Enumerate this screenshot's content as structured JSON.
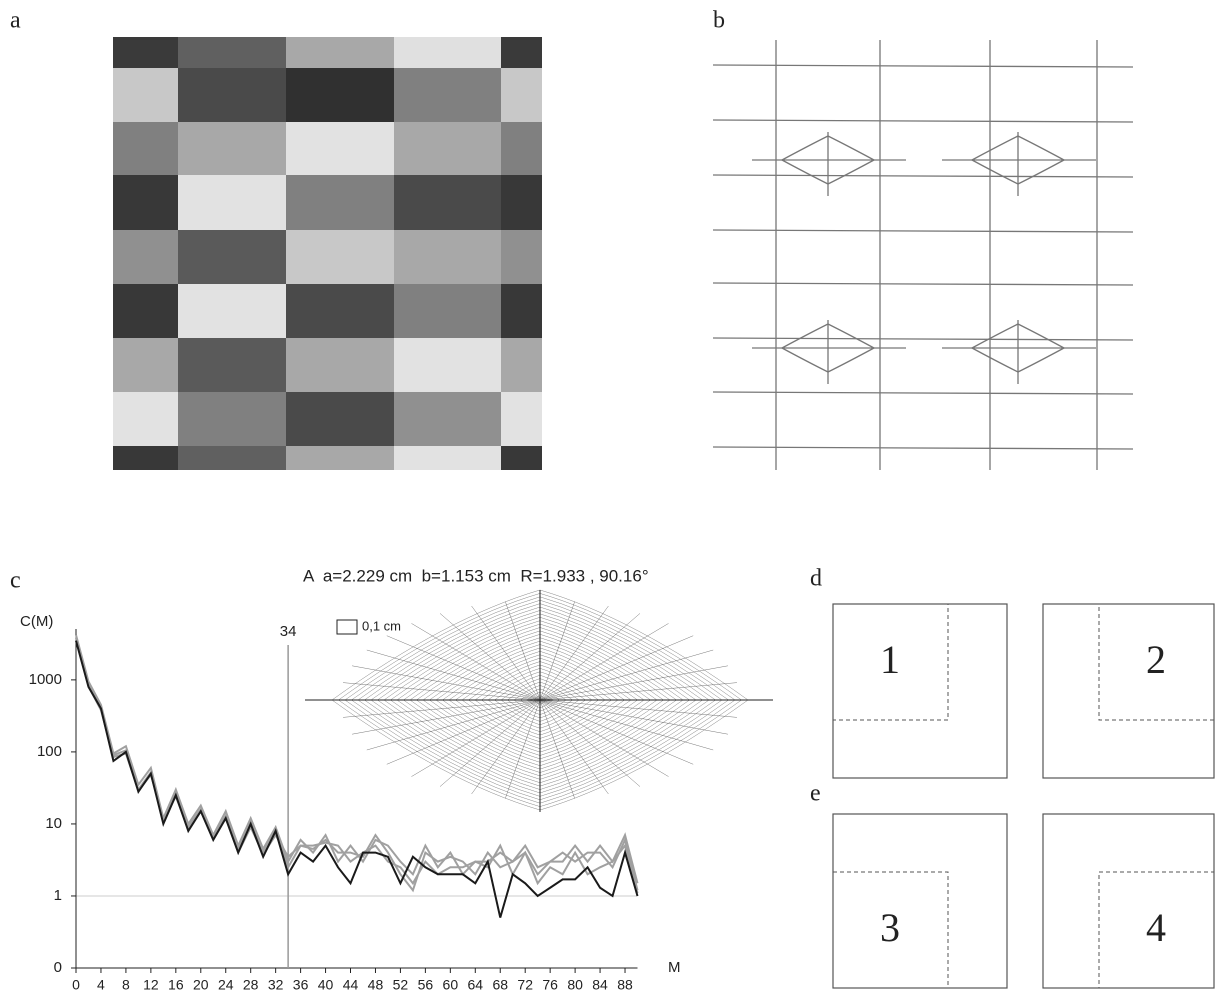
{
  "panel_labels": [
    "a",
    "b",
    "c",
    "d",
    "e"
  ],
  "boxes": [
    1,
    2,
    3,
    4
  ],
  "chart_data": {
    "type": "line",
    "annotation": "A  a=2.229 cm  b=1.153 cm  R=1.933 , 90.16°",
    "scale_label": "0,1 cm",
    "y_label": "C(M)",
    "x_label": "M",
    "yscale": "symlog",
    "x": [
      0,
      2,
      4,
      6,
      8,
      10,
      12,
      14,
      16,
      18,
      20,
      22,
      24,
      26,
      28,
      30,
      32,
      34,
      36,
      38,
      40,
      42,
      44,
      46,
      48,
      50,
      52,
      54,
      56,
      58,
      60,
      62,
      64,
      66,
      68,
      70,
      72,
      74,
      76,
      78,
      80,
      82,
      84,
      86,
      88,
      90
    ],
    "series": [
      {
        "color": "#a0a0a0",
        "values": [
          4200,
          950,
          450,
          95,
          120,
          35,
          60,
          12,
          30,
          10,
          18,
          7,
          15,
          5,
          12,
          4.5,
          9,
          3,
          6,
          4,
          7,
          3,
          5,
          3,
          6,
          5,
          3,
          2,
          5,
          2.5,
          4,
          2,
          3,
          2.5,
          5,
          2,
          4,
          2,
          3,
          3,
          5,
          3,
          5,
          3,
          7,
          1.5
        ]
      },
      {
        "color": "#a0a0a0",
        "values": [
          3800,
          850,
          420,
          90,
          105,
          30,
          52,
          11,
          27,
          9,
          16,
          6.5,
          13,
          4.5,
          11,
          4,
          8.5,
          2.5,
          5,
          4.5,
          6,
          4,
          4,
          3.5,
          7,
          4,
          2,
          1.2,
          4,
          3,
          3.5,
          3,
          2,
          4,
          2.5,
          3,
          5,
          2.5,
          3,
          4,
          3,
          4,
          4,
          2.5,
          6,
          1.2
        ]
      },
      {
        "color": "#a0a0a0",
        "values": [
          3600,
          820,
          380,
          85,
          95,
          29,
          48,
          12,
          24,
          8.5,
          15,
          7,
          12,
          4,
          9,
          3.8,
          7,
          3.5,
          5,
          5,
          5.5,
          5,
          3,
          4,
          5,
          3,
          2.5,
          1.5,
          3,
          2,
          2.5,
          2.5,
          3,
          3,
          4,
          3,
          4,
          1.5,
          2.5,
          2,
          4,
          2,
          2.5,
          3,
          5,
          1.1
        ]
      },
      {
        "color": "#1a1a1a",
        "values": [
          3500,
          800,
          400,
          75,
          100,
          28,
          50,
          10,
          25,
          8,
          15,
          6,
          12,
          4,
          10,
          3.5,
          8,
          2,
          4,
          3,
          5,
          2.5,
          1.5,
          4,
          4,
          3.5,
          1.5,
          3.5,
          2.5,
          2,
          2,
          2,
          1.5,
          3,
          0.7,
          2,
          1.5,
          1,
          1.3,
          1.7,
          1.7,
          2.5,
          1.3,
          1,
          4,
          1
        ]
      }
    ],
    "xlim": [
      0,
      90
    ],
    "ylim": [
      0,
      7000
    ],
    "xticks": [
      0,
      4,
      8,
      12,
      16,
      20,
      24,
      28,
      32,
      36,
      40,
      44,
      48,
      52,
      56,
      60,
      64,
      68,
      72,
      76,
      80,
      84,
      88
    ],
    "yticks": [
      0,
      1,
      10,
      100,
      1000
    ],
    "vline": 34,
    "hline": 1
  }
}
